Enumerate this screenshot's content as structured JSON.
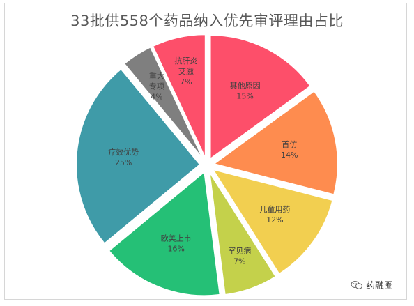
{
  "chart_data": {
    "type": "pie",
    "title": "33批供558个药品纳入优先审评理由占比",
    "slices": [
      {
        "label": "其他原因",
        "percent_label": "15%",
        "value": 15,
        "color": "#fd4f6a"
      },
      {
        "label": "首仿",
        "percent_label": "14%",
        "value": 14,
        "color": "#fe8c4f"
      },
      {
        "label": "儿童用药",
        "percent_label": "12%",
        "value": 12,
        "color": "#f2cf50"
      },
      {
        "label": "罕见病",
        "percent_label": "7%",
        "value": 7,
        "color": "#c4d14b"
      },
      {
        "label": "欧美上市",
        "percent_label": "16%",
        "value": 16,
        "color": "#25c076"
      },
      {
        "label": "疗效优势",
        "percent_label": "25%",
        "value": 25,
        "color": "#3f9ba8"
      },
      {
        "label": "重大专项",
        "percent_label": "4%",
        "value": 4,
        "color": "#7f7f7f"
      },
      {
        "label": "抗肝炎艾滋",
        "percent_label": "7%",
        "value": 7,
        "color": "#fd4f6a"
      }
    ],
    "start_angle_deg": 0,
    "direction": "clockwise",
    "exploded": true,
    "legend": "none"
  },
  "watermark": {
    "icon": "wechat-icon",
    "text": "药融圈"
  }
}
